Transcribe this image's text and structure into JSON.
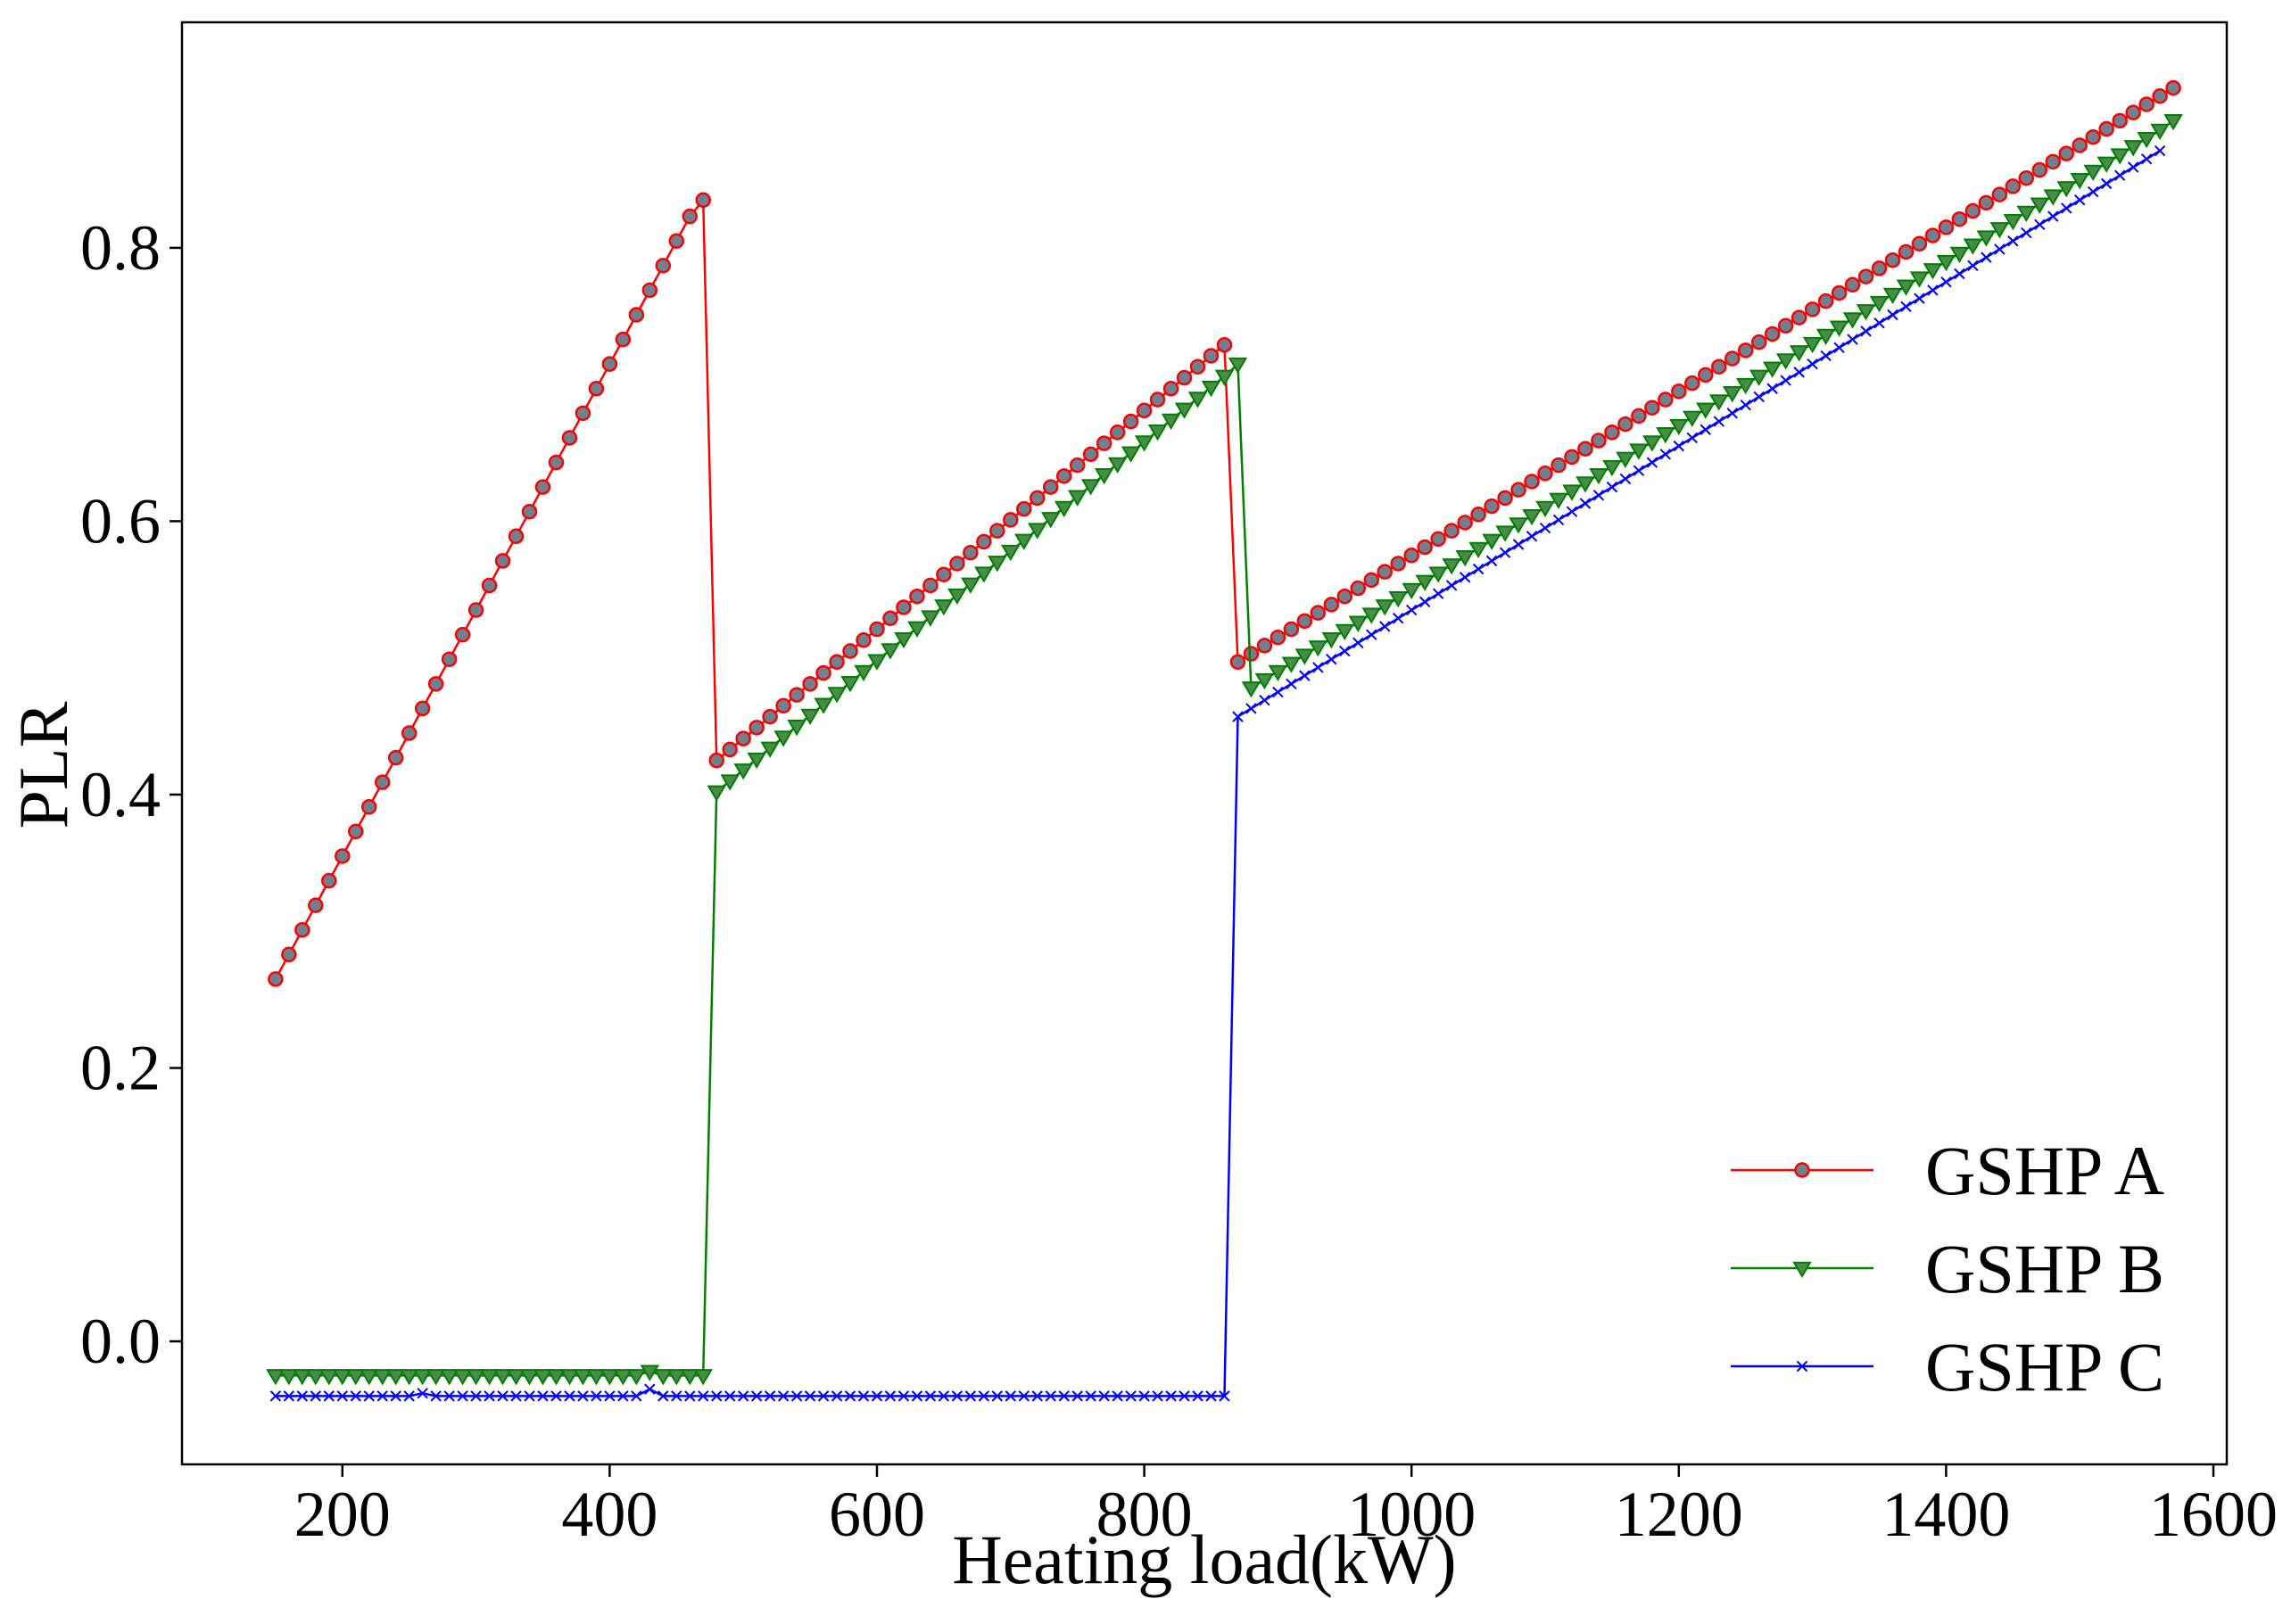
{
  "chart_data": {
    "type": "line",
    "title": "",
    "xlabel": "Heating load(kW)",
    "ylabel": "PLR",
    "xlim": [
      80,
      1610
    ],
    "ylim": [
      -0.09,
      0.965
    ],
    "xticks": [
      200,
      400,
      600,
      800,
      1000,
      1200,
      1400,
      1600
    ],
    "xtick_labels": [
      "200",
      "400",
      "600",
      "800",
      "1000",
      "1200",
      "1400",
      "1600"
    ],
    "yticks": [
      0.0,
      0.2,
      0.4,
      0.6,
      0.8
    ],
    "ytick_labels": [
      "0.0",
      "0.2",
      "0.4",
      "0.6",
      "0.8"
    ],
    "grid": false,
    "legend_position": "bottom-right",
    "x_start": 150,
    "x_step": 10,
    "series": [
      {
        "name": "GSHP A",
        "color": "#ff0000",
        "marker": "circle",
        "marker_face": "#708090",
        "values": [
          0.265,
          0.283,
          0.301,
          0.319,
          0.337,
          0.355,
          0.373,
          0.391,
          0.409,
          0.427,
          0.445,
          0.463,
          0.481,
          0.499,
          0.517,
          0.535,
          0.553,
          0.571,
          0.589,
          0.607,
          0.625,
          0.643,
          0.661,
          0.679,
          0.697,
          0.715,
          0.733,
          0.751,
          0.769,
          0.787,
          0.805,
          0.823,
          0.835,
          0.425,
          0.433,
          0.441,
          0.449,
          0.457,
          0.465,
          0.473,
          0.481,
          0.489,
          0.497,
          0.505,
          0.513,
          0.521,
          0.529,
          0.537,
          0.545,
          0.553,
          0.561,
          0.569,
          0.577,
          0.585,
          0.593,
          0.601,
          0.609,
          0.617,
          0.625,
          0.633,
          0.641,
          0.649,
          0.657,
          0.665,
          0.673,
          0.681,
          0.689,
          0.697,
          0.705,
          0.713,
          0.721,
          0.729,
          0.497,
          0.503,
          0.509,
          0.515,
          0.521,
          0.527,
          0.533,
          0.539,
          0.545,
          0.551,
          0.557,
          0.563,
          0.569,
          0.575,
          0.581,
          0.587,
          0.593,
          0.599,
          0.605,
          0.611,
          0.617,
          0.623,
          0.629,
          0.635,
          0.641,
          0.647,
          0.653,
          0.659,
          0.665,
          0.671,
          0.677,
          0.683,
          0.689,
          0.695,
          0.701,
          0.707,
          0.713,
          0.719,
          0.725,
          0.731,
          0.737,
          0.743,
          0.749,
          0.755,
          0.761,
          0.767,
          0.773,
          0.779,
          0.785,
          0.791,
          0.797,
          0.803,
          0.809,
          0.815,
          0.821,
          0.827,
          0.833,
          0.839,
          0.845,
          0.851,
          0.857,
          0.863,
          0.869,
          0.875,
          0.881,
          0.887,
          0.893,
          0.899,
          0.905,
          0.911,
          0.917
        ]
      },
      {
        "name": "GSHP B",
        "color": "#008000",
        "marker": "triangle-down",
        "marker_face": "#4a8a4a",
        "values": [
          -0.025,
          -0.025,
          -0.025,
          -0.025,
          -0.025,
          -0.025,
          -0.025,
          -0.025,
          -0.025,
          -0.025,
          -0.025,
          -0.025,
          -0.025,
          -0.025,
          -0.025,
          -0.025,
          -0.025,
          -0.025,
          -0.025,
          -0.025,
          -0.025,
          -0.025,
          -0.025,
          -0.025,
          -0.025,
          -0.025,
          -0.025,
          -0.025,
          -0.022,
          -0.025,
          -0.025,
          -0.025,
          -0.025,
          0.402,
          0.41,
          0.418,
          0.426,
          0.434,
          0.442,
          0.45,
          0.458,
          0.466,
          0.474,
          0.482,
          0.49,
          0.498,
          0.506,
          0.514,
          0.522,
          0.53,
          0.538,
          0.546,
          0.554,
          0.562,
          0.57,
          0.578,
          0.586,
          0.594,
          0.602,
          0.61,
          0.618,
          0.626,
          0.634,
          0.642,
          0.65,
          0.658,
          0.666,
          0.674,
          0.682,
          0.69,
          0.698,
          0.706,
          0.715,
          0.478,
          0.484,
          0.49,
          0.496,
          0.502,
          0.508,
          0.514,
          0.52,
          0.526,
          0.532,
          0.538,
          0.544,
          0.55,
          0.556,
          0.562,
          0.568,
          0.574,
          0.58,
          0.586,
          0.592,
          0.598,
          0.604,
          0.61,
          0.616,
          0.622,
          0.628,
          0.634,
          0.64,
          0.646,
          0.652,
          0.658,
          0.664,
          0.67,
          0.676,
          0.682,
          0.688,
          0.694,
          0.7,
          0.706,
          0.712,
          0.718,
          0.724,
          0.73,
          0.736,
          0.742,
          0.748,
          0.754,
          0.76,
          0.766,
          0.772,
          0.778,
          0.784,
          0.79,
          0.796,
          0.802,
          0.808,
          0.814,
          0.82,
          0.826,
          0.832,
          0.838,
          0.844,
          0.85,
          0.856,
          0.862,
          0.868,
          0.874,
          0.88,
          0.886,
          0.893
        ]
      },
      {
        "name": "GSHP C",
        "color": "#0000ff",
        "marker": "x",
        "marker_face": "#0000ff",
        "values": [
          -0.04,
          -0.04,
          -0.04,
          -0.04,
          -0.04,
          -0.04,
          -0.04,
          -0.04,
          -0.04,
          -0.04,
          -0.04,
          -0.038,
          -0.04,
          -0.04,
          -0.04,
          -0.04,
          -0.04,
          -0.04,
          -0.04,
          -0.04,
          -0.04,
          -0.04,
          -0.04,
          -0.04,
          -0.04,
          -0.04,
          -0.04,
          -0.04,
          -0.035,
          -0.04,
          -0.04,
          -0.04,
          -0.04,
          -0.04,
          -0.04,
          -0.04,
          -0.04,
          -0.04,
          -0.04,
          -0.04,
          -0.04,
          -0.04,
          -0.04,
          -0.04,
          -0.04,
          -0.04,
          -0.04,
          -0.04,
          -0.04,
          -0.04,
          -0.04,
          -0.04,
          -0.04,
          -0.04,
          -0.04,
          -0.04,
          -0.04,
          -0.04,
          -0.04,
          -0.04,
          -0.04,
          -0.04,
          -0.04,
          -0.04,
          -0.04,
          -0.04,
          -0.04,
          -0.04,
          -0.04,
          -0.04,
          -0.04,
          -0.04,
          0.457,
          0.463,
          0.469,
          0.475,
          0.481,
          0.487,
          0.493,
          0.499,
          0.505,
          0.511,
          0.517,
          0.523,
          0.529,
          0.535,
          0.541,
          0.547,
          0.553,
          0.559,
          0.565,
          0.571,
          0.577,
          0.583,
          0.589,
          0.595,
          0.601,
          0.607,
          0.613,
          0.619,
          0.625,
          0.631,
          0.637,
          0.643,
          0.649,
          0.655,
          0.661,
          0.667,
          0.673,
          0.679,
          0.685,
          0.691,
          0.697,
          0.703,
          0.709,
          0.715,
          0.721,
          0.727,
          0.733,
          0.739,
          0.745,
          0.751,
          0.757,
          0.763,
          0.769,
          0.775,
          0.781,
          0.787,
          0.793,
          0.799,
          0.805,
          0.811,
          0.817,
          0.823,
          0.829,
          0.835,
          0.841,
          0.847,
          0.853,
          0.859,
          0.865,
          0.871
        ]
      }
    ]
  }
}
